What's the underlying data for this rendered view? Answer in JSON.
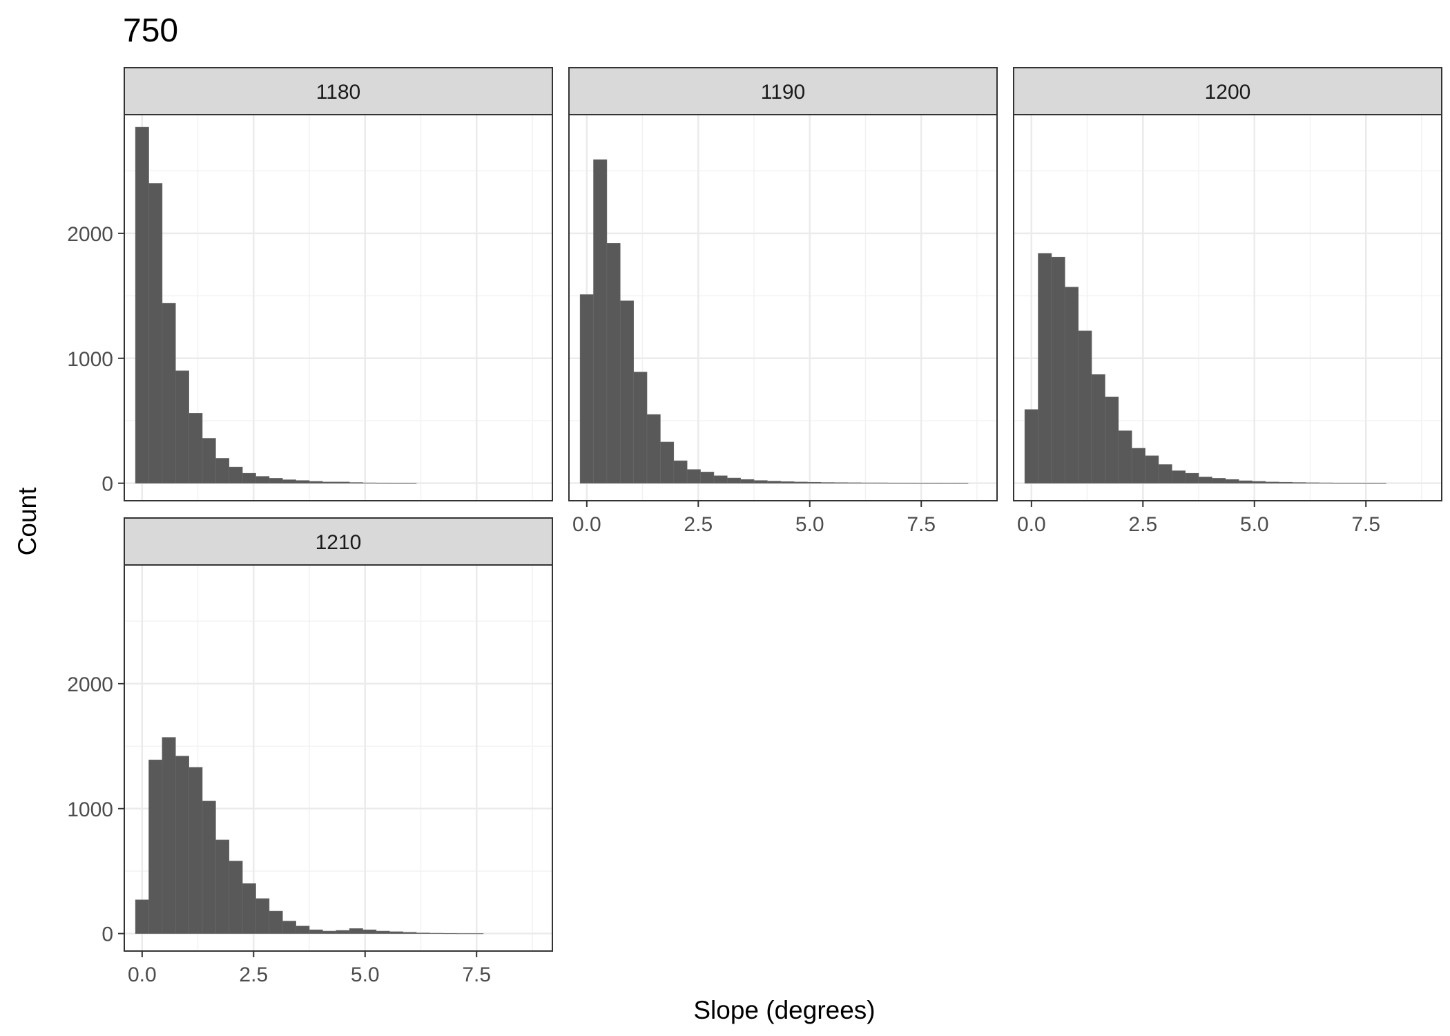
{
  "chart_data": {
    "type": "bar",
    "title": "750",
    "xlabel": "Slope (degrees)",
    "ylabel": "Count",
    "xlim": [
      -0.4,
      9.2
    ],
    "ylim": [
      -140,
      2950
    ],
    "x_ticks": [
      "0.0",
      "2.5",
      "5.0",
      "7.5"
    ],
    "y_ticks": [
      "0",
      "1000",
      "2000"
    ],
    "x_tick_values": [
      0,
      2.5,
      5,
      7.5
    ],
    "y_tick_values": [
      0,
      1000,
      2000
    ],
    "bin_width": 0.3,
    "bin_start": -0.15,
    "grid": true,
    "panels": [
      {
        "name": "1180",
        "values": [
          2850,
          2400,
          1440,
          900,
          560,
          360,
          200,
          130,
          80,
          55,
          40,
          28,
          22,
          15,
          10,
          10,
          6,
          3,
          2,
          1,
          1,
          0,
          0,
          0,
          0,
          0,
          0,
          0,
          0,
          0
        ]
      },
      {
        "name": "1190",
        "values": [
          1510,
          2590,
          1920,
          1460,
          890,
          550,
          330,
          180,
          110,
          90,
          60,
          42,
          30,
          22,
          17,
          13,
          10,
          8,
          6,
          5,
          4,
          3,
          3,
          2,
          2,
          1,
          1,
          1,
          1,
          0
        ]
      },
      {
        "name": "1200",
        "values": [
          590,
          1840,
          1810,
          1570,
          1220,
          870,
          690,
          420,
          280,
          220,
          150,
          100,
          80,
          50,
          40,
          30,
          20,
          15,
          10,
          8,
          6,
          4,
          3,
          2,
          2,
          1,
          1,
          0,
          0,
          0
        ]
      },
      {
        "name": "1210",
        "values": [
          270,
          1390,
          1570,
          1420,
          1330,
          1060,
          750,
          580,
          400,
          280,
          180,
          100,
          60,
          30,
          20,
          25,
          40,
          30,
          20,
          15,
          10,
          5,
          3,
          2,
          1,
          1,
          0,
          0,
          0,
          0
        ]
      }
    ]
  }
}
